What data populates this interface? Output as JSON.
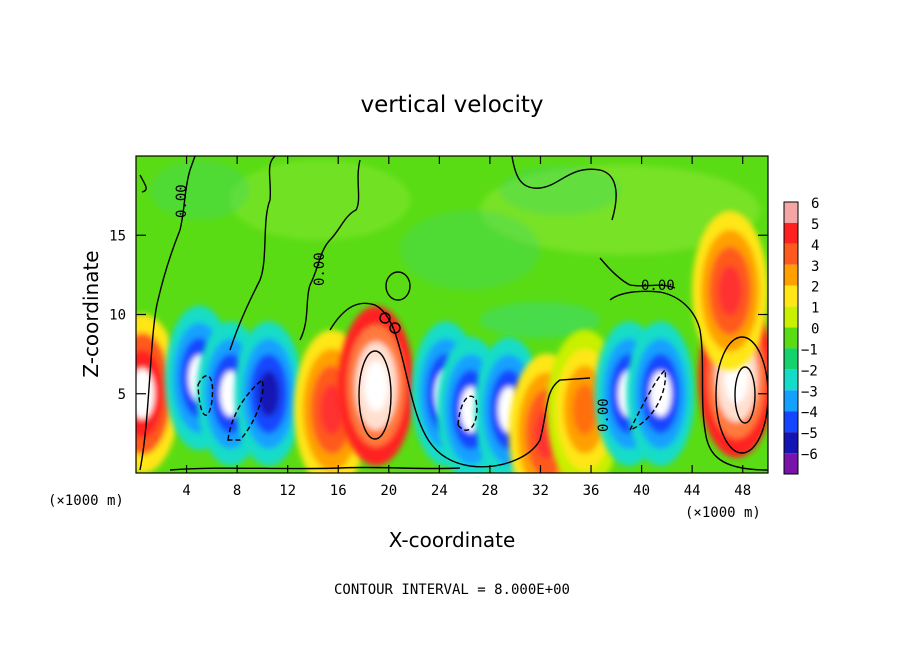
{
  "chart_data": {
    "type": "heatmap",
    "title": "vertical velocity",
    "xlabel": "X-coordinate",
    "ylabel": "Z-coordinate",
    "x_unit_left": "(×1000 m)",
    "x_unit_right": "(×1000 m)",
    "footer": "CONTOUR INTERVAL = 8.000E+00",
    "xlim": [
      0,
      50
    ],
    "ylim": [
      0,
      20
    ],
    "x_ticks": [
      4,
      8,
      12,
      16,
      20,
      24,
      28,
      32,
      36,
      40,
      44,
      48
    ],
    "y_ticks": [
      5,
      10,
      15
    ],
    "grid": false,
    "colorbar": {
      "levels": [
        6,
        5,
        4,
        3,
        2,
        1,
        0,
        -1,
        -2,
        -3,
        -4,
        -5,
        -6
      ],
      "colors": [
        "#f4a6a6",
        "#ff2020",
        "#ff5a1e",
        "#ffa000",
        "#ffe614",
        "#c8f000",
        "#5adc14",
        "#14d26e",
        "#14dcc8",
        "#14a0ff",
        "#1446ff",
        "#1414b4",
        "#7814aa"
      ],
      "placement": "right"
    },
    "contour_labels": [
      "0.00",
      "0.00",
      "0.00",
      "0.00"
    ],
    "background_value": 0,
    "features": [
      {
        "kind": "updraft",
        "x": 0.5,
        "z": 5,
        "value": 5
      },
      {
        "kind": "downdraft",
        "x": 5,
        "z": 6,
        "value": -5
      },
      {
        "kind": "downdraft",
        "x": 7.5,
        "z": 5,
        "value": -5
      },
      {
        "kind": "downdraft",
        "x": 10.5,
        "z": 5,
        "value": -4
      },
      {
        "kind": "updraft",
        "x": 15.5,
        "z": 4,
        "value": 4
      },
      {
        "kind": "updraft",
        "x": 19,
        "z": 5.5,
        "value": 6
      },
      {
        "kind": "downdraft",
        "x": 24.5,
        "z": 5,
        "value": -5
      },
      {
        "kind": "downdraft",
        "x": 26.5,
        "z": 4,
        "value": -5
      },
      {
        "kind": "downdraft",
        "x": 29.5,
        "z": 4,
        "value": -5
      },
      {
        "kind": "updraft",
        "x": 32.5,
        "z": 2.5,
        "value": 4
      },
      {
        "kind": "updraft",
        "x": 35.5,
        "z": 4,
        "value": 3
      },
      {
        "kind": "downdraft",
        "x": 39,
        "z": 5,
        "value": -5
      },
      {
        "kind": "downdraft",
        "x": 41.5,
        "z": 5,
        "value": -5
      },
      {
        "kind": "updraft",
        "x": 47.5,
        "z": 6,
        "value": 6
      },
      {
        "kind": "updraft",
        "x": 47,
        "z": 11.5,
        "value": 4
      }
    ]
  }
}
